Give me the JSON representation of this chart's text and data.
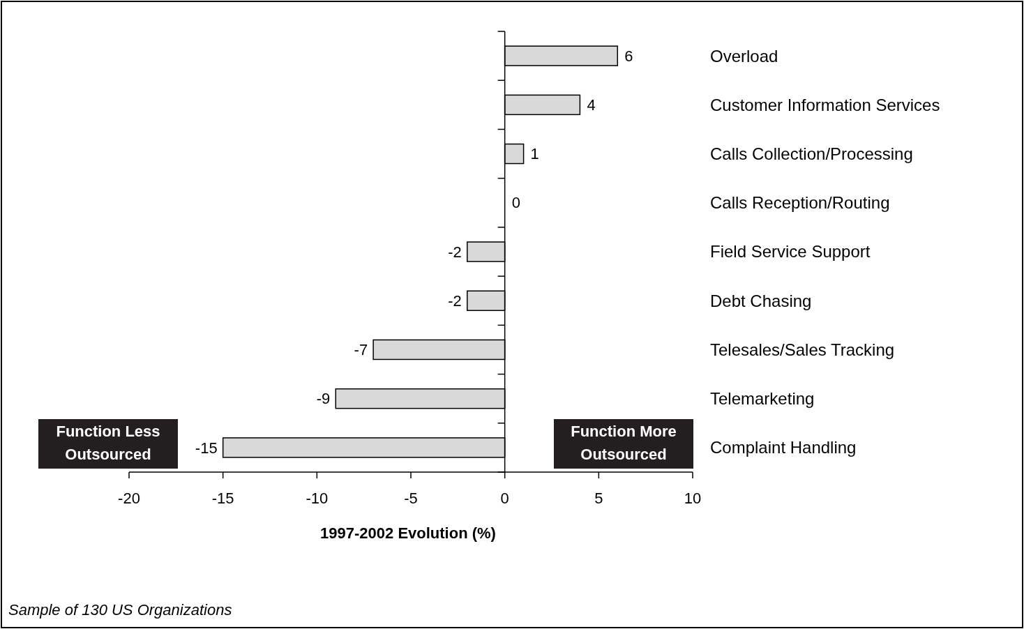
{
  "chart_data": {
    "type": "bar",
    "orientation": "horizontal",
    "xlabel": "1997-2002 Evolution (%)",
    "categories": [
      "Overload",
      "Customer Information Services",
      "Calls Collection/Processing",
      "Calls Reception/Routing",
      "Field Service Support",
      "Debt Chasing",
      "Telesales/Sales Tracking",
      "Telemarketing",
      "Complaint Handling"
    ],
    "values": [
      6,
      4,
      1,
      0,
      -2,
      -2,
      -7,
      -9,
      -15
    ],
    "color": "#d9d9d9",
    "xlim": [
      -20,
      10
    ],
    "xticks": [
      -20,
      -15,
      -10,
      -5,
      0,
      5,
      10
    ],
    "data_labels": true,
    "annotations": [
      "Function Less Outsourced",
      "Function More Outsourced",
      "Sample of 130 US Organizations"
    ]
  }
}
